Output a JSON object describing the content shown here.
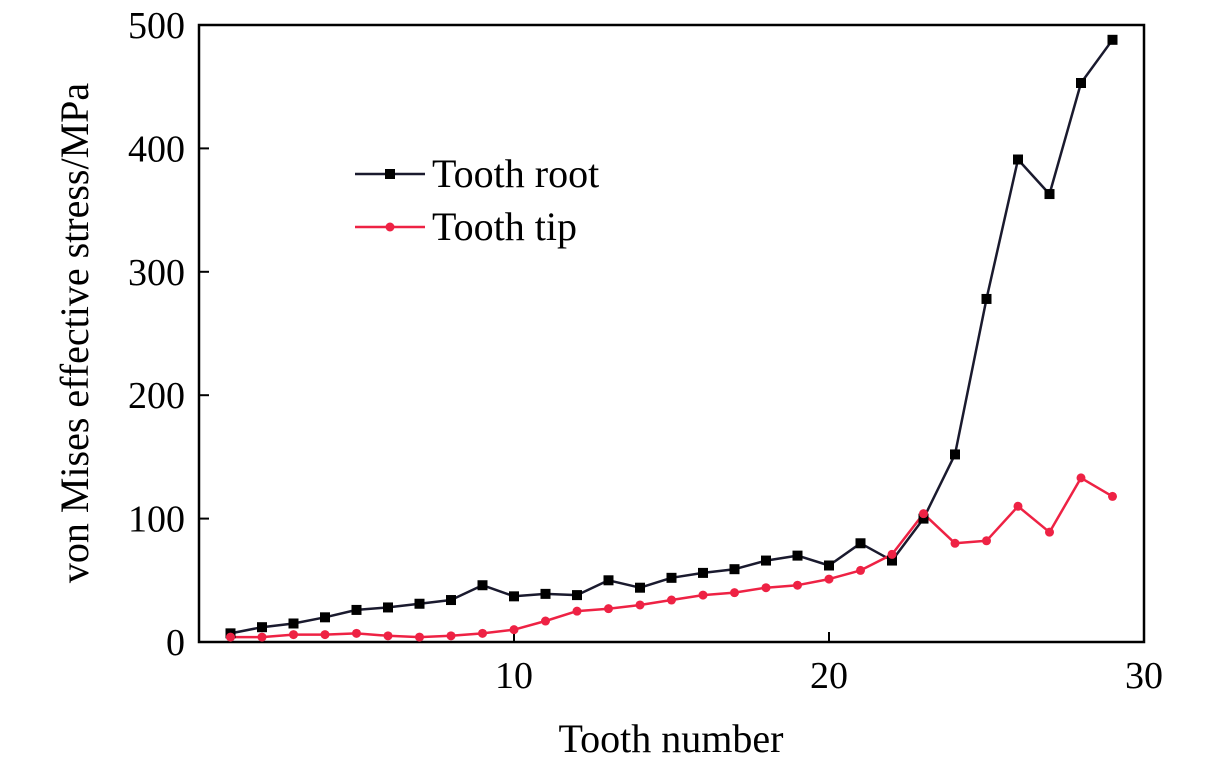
{
  "chart_data": {
    "type": "line",
    "title": "",
    "xlabel": "Tooth number",
    "ylabel": "von Mises effective stress/MPa",
    "xlim": [
      0,
      30
    ],
    "ylim": [
      0,
      500
    ],
    "xticks": [
      10,
      20,
      30
    ],
    "yticks": [
      0,
      100,
      200,
      300,
      400,
      500
    ],
    "grid": false,
    "legend_position": "upper-left",
    "x": [
      1,
      2,
      3,
      4,
      5,
      6,
      7,
      8,
      9,
      10,
      11,
      12,
      13,
      14,
      15,
      16,
      17,
      18,
      19,
      20,
      21,
      22,
      23,
      24,
      25,
      26,
      27,
      28,
      29
    ],
    "series": [
      {
        "name": "Tooth root",
        "color": "#1a1a2e",
        "marker": "square",
        "values": [
          7,
          12,
          15,
          20,
          26,
          28,
          31,
          34,
          46,
          37,
          39,
          38,
          50,
          44,
          52,
          56,
          59,
          66,
          70,
          62,
          80,
          66,
          100,
          152,
          278,
          391,
          363,
          453,
          488
        ]
      },
      {
        "name": "Tooth tip",
        "color": "#ee2244",
        "marker": "circle",
        "values": [
          4,
          4,
          6,
          6,
          7,
          5,
          4,
          5,
          7,
          10,
          17,
          25,
          27,
          30,
          34,
          38,
          40,
          44,
          46,
          51,
          58,
          71,
          104,
          80,
          82,
          110,
          89,
          133,
          118
        ]
      }
    ]
  }
}
